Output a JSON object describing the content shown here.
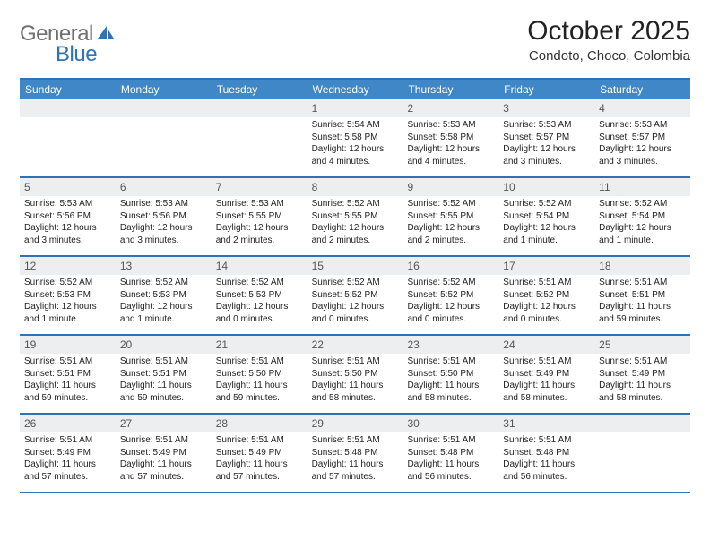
{
  "brand": {
    "word1": "General",
    "word2": "Blue"
  },
  "title": "October 2025",
  "subtitle": "Condoto, Choco, Colombia",
  "colors": {
    "header_bg": "#3f87c7",
    "border": "#2f73b6",
    "daynum_bg": "#eceef0",
    "text": "#222222",
    "logo_gray": "#6f6f6f",
    "logo_blue": "#2f73b6"
  },
  "day_headers": [
    "Sunday",
    "Monday",
    "Tuesday",
    "Wednesday",
    "Thursday",
    "Friday",
    "Saturday"
  ],
  "weeks": [
    [
      {
        "empty": true
      },
      {
        "empty": true
      },
      {
        "empty": true
      },
      {
        "n": "1",
        "sunrise": "5:54 AM",
        "sunset": "5:58 PM",
        "daylight": "12 hours and 4 minutes."
      },
      {
        "n": "2",
        "sunrise": "5:53 AM",
        "sunset": "5:58 PM",
        "daylight": "12 hours and 4 minutes."
      },
      {
        "n": "3",
        "sunrise": "5:53 AM",
        "sunset": "5:57 PM",
        "daylight": "12 hours and 3 minutes."
      },
      {
        "n": "4",
        "sunrise": "5:53 AM",
        "sunset": "5:57 PM",
        "daylight": "12 hours and 3 minutes."
      }
    ],
    [
      {
        "n": "5",
        "sunrise": "5:53 AM",
        "sunset": "5:56 PM",
        "daylight": "12 hours and 3 minutes."
      },
      {
        "n": "6",
        "sunrise": "5:53 AM",
        "sunset": "5:56 PM",
        "daylight": "12 hours and 3 minutes."
      },
      {
        "n": "7",
        "sunrise": "5:53 AM",
        "sunset": "5:55 PM",
        "daylight": "12 hours and 2 minutes."
      },
      {
        "n": "8",
        "sunrise": "5:52 AM",
        "sunset": "5:55 PM",
        "daylight": "12 hours and 2 minutes."
      },
      {
        "n": "9",
        "sunrise": "5:52 AM",
        "sunset": "5:55 PM",
        "daylight": "12 hours and 2 minutes."
      },
      {
        "n": "10",
        "sunrise": "5:52 AM",
        "sunset": "5:54 PM",
        "daylight": "12 hours and 1 minute."
      },
      {
        "n": "11",
        "sunrise": "5:52 AM",
        "sunset": "5:54 PM",
        "daylight": "12 hours and 1 minute."
      }
    ],
    [
      {
        "n": "12",
        "sunrise": "5:52 AM",
        "sunset": "5:53 PM",
        "daylight": "12 hours and 1 minute."
      },
      {
        "n": "13",
        "sunrise": "5:52 AM",
        "sunset": "5:53 PM",
        "daylight": "12 hours and 1 minute."
      },
      {
        "n": "14",
        "sunrise": "5:52 AM",
        "sunset": "5:53 PM",
        "daylight": "12 hours and 0 minutes."
      },
      {
        "n": "15",
        "sunrise": "5:52 AM",
        "sunset": "5:52 PM",
        "daylight": "12 hours and 0 minutes."
      },
      {
        "n": "16",
        "sunrise": "5:52 AM",
        "sunset": "5:52 PM",
        "daylight": "12 hours and 0 minutes."
      },
      {
        "n": "17",
        "sunrise": "5:51 AM",
        "sunset": "5:52 PM",
        "daylight": "12 hours and 0 minutes."
      },
      {
        "n": "18",
        "sunrise": "5:51 AM",
        "sunset": "5:51 PM",
        "daylight": "11 hours and 59 minutes."
      }
    ],
    [
      {
        "n": "19",
        "sunrise": "5:51 AM",
        "sunset": "5:51 PM",
        "daylight": "11 hours and 59 minutes."
      },
      {
        "n": "20",
        "sunrise": "5:51 AM",
        "sunset": "5:51 PM",
        "daylight": "11 hours and 59 minutes."
      },
      {
        "n": "21",
        "sunrise": "5:51 AM",
        "sunset": "5:50 PM",
        "daylight": "11 hours and 59 minutes."
      },
      {
        "n": "22",
        "sunrise": "5:51 AM",
        "sunset": "5:50 PM",
        "daylight": "11 hours and 58 minutes."
      },
      {
        "n": "23",
        "sunrise": "5:51 AM",
        "sunset": "5:50 PM",
        "daylight": "11 hours and 58 minutes."
      },
      {
        "n": "24",
        "sunrise": "5:51 AM",
        "sunset": "5:49 PM",
        "daylight": "11 hours and 58 minutes."
      },
      {
        "n": "25",
        "sunrise": "5:51 AM",
        "sunset": "5:49 PM",
        "daylight": "11 hours and 58 minutes."
      }
    ],
    [
      {
        "n": "26",
        "sunrise": "5:51 AM",
        "sunset": "5:49 PM",
        "daylight": "11 hours and 57 minutes."
      },
      {
        "n": "27",
        "sunrise": "5:51 AM",
        "sunset": "5:49 PM",
        "daylight": "11 hours and 57 minutes."
      },
      {
        "n": "28",
        "sunrise": "5:51 AM",
        "sunset": "5:49 PM",
        "daylight": "11 hours and 57 minutes."
      },
      {
        "n": "29",
        "sunrise": "5:51 AM",
        "sunset": "5:48 PM",
        "daylight": "11 hours and 57 minutes."
      },
      {
        "n": "30",
        "sunrise": "5:51 AM",
        "sunset": "5:48 PM",
        "daylight": "11 hours and 56 minutes."
      },
      {
        "n": "31",
        "sunrise": "5:51 AM",
        "sunset": "5:48 PM",
        "daylight": "11 hours and 56 minutes."
      },
      {
        "empty": true
      }
    ]
  ],
  "labels": {
    "sunrise": "Sunrise: ",
    "sunset": "Sunset: ",
    "daylight": "Daylight: "
  }
}
